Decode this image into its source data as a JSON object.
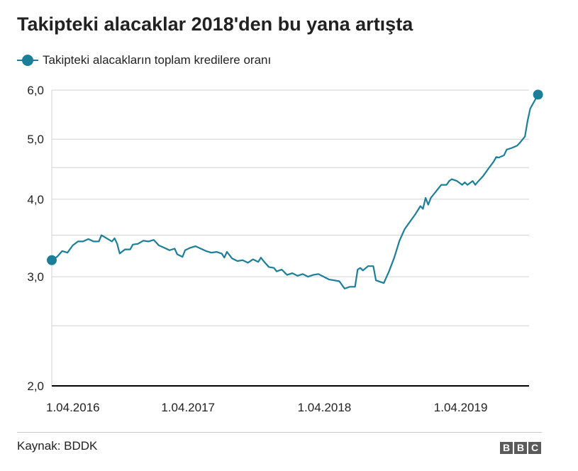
{
  "header": {
    "title": "Takipteki alacaklar 2018'den bu yana artışta"
  },
  "colors": {
    "series": "#1b7f9a",
    "grid": "#d0d0d0",
    "axis": "#000000",
    "text": "#222222",
    "logo": "#5a5a5a"
  },
  "chart_data": {
    "type": "line",
    "title": "Takipteki alacaklar 2018'den bu yana artışta",
    "xlabel": "",
    "ylabel": "",
    "yscale": "log",
    "ylim": [
      2.0,
      6.0
    ],
    "xlim": [
      "2016-04-01",
      "2019-10-01"
    ],
    "grid": true,
    "legend_position": "top-left",
    "y_ticks": [
      {
        "value": 2.0,
        "label": "2,0"
      },
      {
        "value": 2.5,
        "label": ""
      },
      {
        "value": 3.0,
        "label": "3,0"
      },
      {
        "value": 3.5,
        "label": ""
      },
      {
        "value": 4.0,
        "label": "4,0"
      },
      {
        "value": 4.5,
        "label": ""
      },
      {
        "value": 5.0,
        "label": "5,0"
      },
      {
        "value": 6.0,
        "label": "6,0"
      }
    ],
    "x_ticks": [
      {
        "value": "2016-04-01",
        "label": "1.04.2016"
      },
      {
        "value": "2017-04-01",
        "label": "1.04.2017"
      },
      {
        "value": "2018-04-01",
        "label": "1.04.2018"
      },
      {
        "value": "2019-04-01",
        "label": "1.04.2019"
      }
    ],
    "series": [
      {
        "name": "Takipteki alacakların toplam kredilere oranı",
        "points": [
          [
            "2016-04-01",
            3.19
          ],
          [
            "2016-04-15",
            3.23
          ],
          [
            "2016-04-29",
            3.3
          ],
          [
            "2016-05-13",
            3.28
          ],
          [
            "2016-05-27",
            3.37
          ],
          [
            "2016-06-10",
            3.42
          ],
          [
            "2016-06-24",
            3.42
          ],
          [
            "2016-07-08",
            3.45
          ],
          [
            "2016-07-22",
            3.42
          ],
          [
            "2016-08-05",
            3.42
          ],
          [
            "2016-08-12",
            3.5
          ],
          [
            "2016-08-26",
            3.46
          ],
          [
            "2016-09-09",
            3.42
          ],
          [
            "2016-09-16",
            3.46
          ],
          [
            "2016-09-23",
            3.39
          ],
          [
            "2016-09-30",
            3.27
          ],
          [
            "2016-10-14",
            3.32
          ],
          [
            "2016-10-28",
            3.32
          ],
          [
            "2016-11-04",
            3.38
          ],
          [
            "2016-11-18",
            3.39
          ],
          [
            "2016-12-02",
            3.43
          ],
          [
            "2016-12-16",
            3.42
          ],
          [
            "2016-12-30",
            3.44
          ],
          [
            "2017-01-13",
            3.37
          ],
          [
            "2017-01-27",
            3.34
          ],
          [
            "2017-02-10",
            3.31
          ],
          [
            "2017-02-24",
            3.33
          ],
          [
            "2017-03-03",
            3.26
          ],
          [
            "2017-03-17",
            3.23
          ],
          [
            "2017-03-24",
            3.31
          ],
          [
            "2017-04-07",
            3.34
          ],
          [
            "2017-04-21",
            3.36
          ],
          [
            "2017-05-05",
            3.33
          ],
          [
            "2017-05-19",
            3.3
          ],
          [
            "2017-06-02",
            3.28
          ],
          [
            "2017-06-16",
            3.29
          ],
          [
            "2017-06-30",
            3.27
          ],
          [
            "2017-07-07",
            3.22
          ],
          [
            "2017-07-14",
            3.29
          ],
          [
            "2017-07-28",
            3.21
          ],
          [
            "2017-08-11",
            3.18
          ],
          [
            "2017-08-25",
            3.19
          ],
          [
            "2017-09-08",
            3.16
          ],
          [
            "2017-09-22",
            3.2
          ],
          [
            "2017-10-06",
            3.17
          ],
          [
            "2017-10-13",
            3.22
          ],
          [
            "2017-10-20",
            3.18
          ],
          [
            "2017-11-03",
            3.11
          ],
          [
            "2017-11-17",
            3.1
          ],
          [
            "2017-11-24",
            3.06
          ],
          [
            "2017-12-08",
            3.08
          ],
          [
            "2017-12-22",
            3.02
          ],
          [
            "2018-01-05",
            3.04
          ],
          [
            "2018-01-19",
            3.01
          ],
          [
            "2018-02-02",
            3.03
          ],
          [
            "2018-02-16",
            3.0
          ],
          [
            "2018-03-02",
            3.02
          ],
          [
            "2018-03-16",
            3.03
          ],
          [
            "2018-03-30",
            3.0
          ],
          [
            "2018-04-13",
            2.97
          ],
          [
            "2018-04-27",
            2.96
          ],
          [
            "2018-05-11",
            2.95
          ],
          [
            "2018-05-25",
            2.87
          ],
          [
            "2018-06-08",
            2.89
          ],
          [
            "2018-06-22",
            2.89
          ],
          [
            "2018-06-29",
            3.08
          ],
          [
            "2018-07-06",
            3.1
          ],
          [
            "2018-07-13",
            3.07
          ],
          [
            "2018-07-27",
            3.12
          ],
          [
            "2018-08-10",
            3.12
          ],
          [
            "2018-08-17",
            2.96
          ],
          [
            "2018-08-31",
            2.94
          ],
          [
            "2018-09-07",
            2.93
          ],
          [
            "2018-09-21",
            3.06
          ],
          [
            "2018-10-05",
            3.22
          ],
          [
            "2018-10-19",
            3.43
          ],
          [
            "2018-11-02",
            3.58
          ],
          [
            "2018-11-16",
            3.68
          ],
          [
            "2018-11-30",
            3.78
          ],
          [
            "2018-12-14",
            3.9
          ],
          [
            "2018-12-21",
            3.86
          ],
          [
            "2018-12-28",
            4.02
          ],
          [
            "2019-01-04",
            3.92
          ],
          [
            "2019-01-11",
            4.02
          ],
          [
            "2019-01-25",
            4.12
          ],
          [
            "2019-02-08",
            4.22
          ],
          [
            "2019-02-22",
            4.22
          ],
          [
            "2019-03-01",
            4.28
          ],
          [
            "2019-03-08",
            4.31
          ],
          [
            "2019-03-22",
            4.28
          ],
          [
            "2019-04-05",
            4.22
          ],
          [
            "2019-04-12",
            4.26
          ],
          [
            "2019-04-19",
            4.22
          ],
          [
            "2019-05-03",
            4.28
          ],
          [
            "2019-05-10",
            4.22
          ],
          [
            "2019-05-17",
            4.27
          ],
          [
            "2019-05-31",
            4.36
          ],
          [
            "2019-06-14",
            4.48
          ],
          [
            "2019-06-28",
            4.6
          ],
          [
            "2019-07-05",
            4.68
          ],
          [
            "2019-07-12",
            4.67
          ],
          [
            "2019-07-26",
            4.71
          ],
          [
            "2019-08-02",
            4.81
          ],
          [
            "2019-08-16",
            4.84
          ],
          [
            "2019-08-30",
            4.88
          ],
          [
            "2019-09-06",
            4.93
          ],
          [
            "2019-09-20",
            5.05
          ],
          [
            "2019-09-27",
            5.35
          ],
          [
            "2019-10-04",
            5.6
          ],
          [
            "2019-10-18",
            5.8
          ],
          [
            "2019-10-25",
            5.9
          ]
        ]
      }
    ]
  },
  "footer": {
    "source": "Kaynak: BDDK",
    "logo_letters": [
      "B",
      "B",
      "C"
    ]
  }
}
